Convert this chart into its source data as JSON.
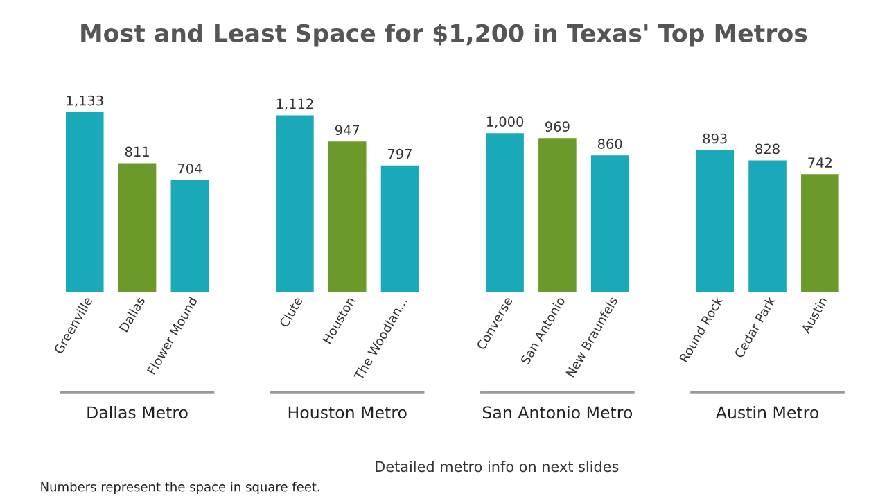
{
  "chart_data": {
    "type": "bar",
    "title": "Most and Least Space for $1,200 in Texas' Top Metros",
    "categories": [
      "Greenville",
      "Dallas",
      "Flower Mound",
      null,
      "Clute",
      "Houston",
      "The Woodlan...",
      null,
      "Converse",
      "San Antonio",
      "New Braunfels",
      null,
      "Round Rock",
      "Cedar Park",
      "Austin"
    ],
    "values": [
      1133,
      811,
      704,
      null,
      1112,
      947,
      797,
      null,
      1000,
      969,
      860,
      null,
      893,
      828,
      742
    ],
    "colors": [
      "#19a9b9",
      "#6b9a2b",
      "#19a9b9",
      null,
      "#19a9b9",
      "#6b9a2b",
      "#19a9b9",
      null,
      "#19a9b9",
      "#6b9a2b",
      "#19a9b9",
      null,
      "#19a9b9",
      "#19a9b9",
      "#6b9a2b"
    ],
    "value_labels": [
      "1,133",
      "811",
      "704",
      null,
      "1,112",
      "947",
      "797",
      null,
      "1,000",
      "969",
      "860",
      null,
      "893",
      "828",
      "742"
    ],
    "annotations": [
      "Dallas Metro",
      "Houston Metro",
      "San Antonio Metro",
      "Austin Metro",
      "Numbers represent the space in square feet.",
      "Detailed metro info on next slides"
    ]
  }
}
